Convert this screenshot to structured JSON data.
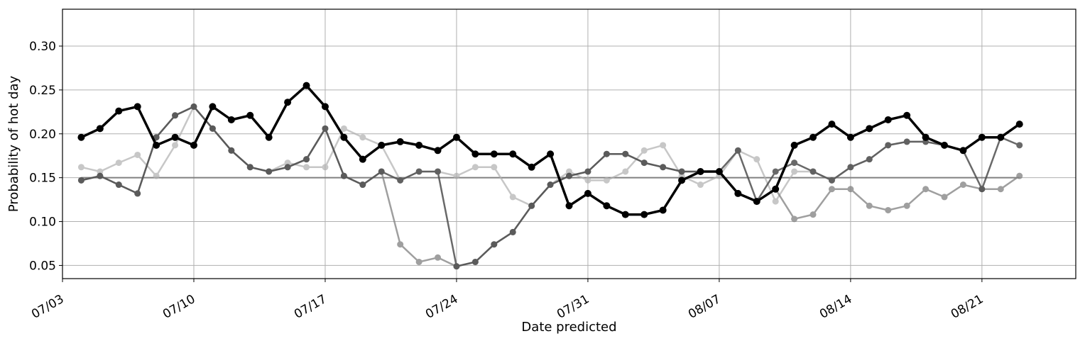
{
  "chart_data": {
    "type": "line",
    "xlabel": "Date predicted",
    "ylabel": "Probability of hot day",
    "xlim": [
      "2023-07-03",
      "2023-08-26"
    ],
    "ylim": [
      0.035,
      0.342
    ],
    "x_ticks": [
      "07/03",
      "07/10",
      "07/17",
      "07/24",
      "07/31",
      "08/07",
      "08/14",
      "08/21"
    ],
    "y_ticks": [
      "0.05",
      "0.10",
      "0.15",
      "0.20",
      "0.25",
      "0.30"
    ],
    "grid": true,
    "reference_line": {
      "y": 0.15,
      "color": "#808080"
    },
    "dates": [
      "2023-07-04",
      "2023-07-05",
      "2023-07-06",
      "2023-07-07",
      "2023-07-08",
      "2023-07-09",
      "2023-07-10",
      "2023-07-11",
      "2023-07-12",
      "2023-07-13",
      "2023-07-14",
      "2023-07-15",
      "2023-07-16",
      "2023-07-17",
      "2023-07-18",
      "2023-07-19",
      "2023-07-20",
      "2023-07-21",
      "2023-07-22",
      "2023-07-23",
      "2023-07-24",
      "2023-07-25",
      "2023-07-26",
      "2023-07-27",
      "2023-07-28",
      "2023-07-29",
      "2023-07-30",
      "2023-07-31",
      "2023-08-01",
      "2023-08-02",
      "2023-08-03",
      "2023-08-04",
      "2023-08-05",
      "2023-08-06",
      "2023-08-07",
      "2023-08-08",
      "2023-08-09",
      "2023-08-10",
      "2023-08-11",
      "2023-08-12",
      "2023-08-13",
      "2023-08-14",
      "2023-08-15",
      "2023-08-16",
      "2023-08-17",
      "2023-08-18",
      "2023-08-19",
      "2023-08-20",
      "2023-08-21",
      "2023-08-22",
      "2023-08-23"
    ],
    "series": [
      {
        "color": "#b0b0b0",
        "values": [
          0.162,
          0.157,
          0.167,
          0.176,
          0.152,
          0.187,
          0.231,
          0.206,
          0.181,
          0.162,
          0.157,
          0.167,
          0.162,
          0.162,
          0.206,
          0.196,
          0.187,
          0.147,
          0.157,
          0.157,
          0.152,
          0.162,
          0.162,
          0.128,
          0.118,
          0.142,
          0.157,
          0.147,
          0.147,
          0.157,
          0.181,
          0.187,
          0.152,
          0.142,
          0.152,
          0.181,
          0.171,
          0.123,
          0.157,
          0.157,
          0.147,
          0.162,
          0.171,
          0.187,
          0.191,
          0.191,
          0.187,
          0.181,
          0.196,
          0.196,
          0.211
        ]
      },
      {
        "color": "#808080",
        "values": [
          0.147,
          0.152,
          0.142,
          0.132,
          0.196,
          0.221,
          0.231,
          0.206,
          0.181,
          0.162,
          0.157,
          0.162,
          0.171,
          0.206,
          0.152,
          0.142,
          0.157,
          0.074,
          0.054,
          0.059,
          0.049,
          0.054,
          0.074,
          0.088,
          0.118,
          0.142,
          0.152,
          0.157,
          0.177,
          0.177,
          0.167,
          0.162,
          0.157,
          0.157,
          0.157,
          0.132,
          0.123,
          0.137,
          0.103,
          0.108,
          0.137,
          0.137,
          0.118,
          0.113,
          0.118,
          0.137,
          0.128,
          0.142,
          0.137,
          0.137,
          0.152
        ]
      },
      {
        "color": "#505050",
        "values": [
          0.147,
          0.152,
          0.142,
          0.132,
          0.196,
          0.221,
          0.231,
          0.206,
          0.181,
          0.162,
          0.157,
          0.162,
          0.171,
          0.206,
          0.152,
          0.142,
          0.157,
          0.147,
          0.157,
          0.157,
          0.049,
          0.054,
          0.074,
          0.088,
          0.118,
          0.142,
          0.152,
          0.157,
          0.177,
          0.177,
          0.167,
          0.162,
          0.157,
          0.157,
          0.157,
          0.181,
          0.123,
          0.157,
          0.167,
          0.157,
          0.147,
          0.162,
          0.171,
          0.187,
          0.191,
          0.191,
          0.187,
          0.181,
          0.137,
          0.196,
          0.187
        ]
      },
      {
        "color": "#000000",
        "values": [
          0.196,
          0.206,
          0.226,
          0.231,
          0.187,
          0.196,
          0.187,
          0.231,
          0.216,
          0.221,
          0.196,
          0.236,
          0.255,
          0.231,
          0.196,
          0.171,
          0.187,
          0.191,
          0.187,
          0.181,
          0.196,
          0.177,
          0.177,
          0.177,
          0.162,
          0.177,
          0.118,
          0.132,
          0.118,
          0.108,
          0.108,
          0.113,
          0.147,
          0.157,
          0.157,
          0.132,
          0.123,
          0.137,
          0.187,
          0.196,
          0.211,
          0.196,
          0.206,
          0.216,
          0.221,
          0.196,
          0.187,
          0.181,
          0.196,
          0.196,
          0.211
        ]
      }
    ]
  }
}
